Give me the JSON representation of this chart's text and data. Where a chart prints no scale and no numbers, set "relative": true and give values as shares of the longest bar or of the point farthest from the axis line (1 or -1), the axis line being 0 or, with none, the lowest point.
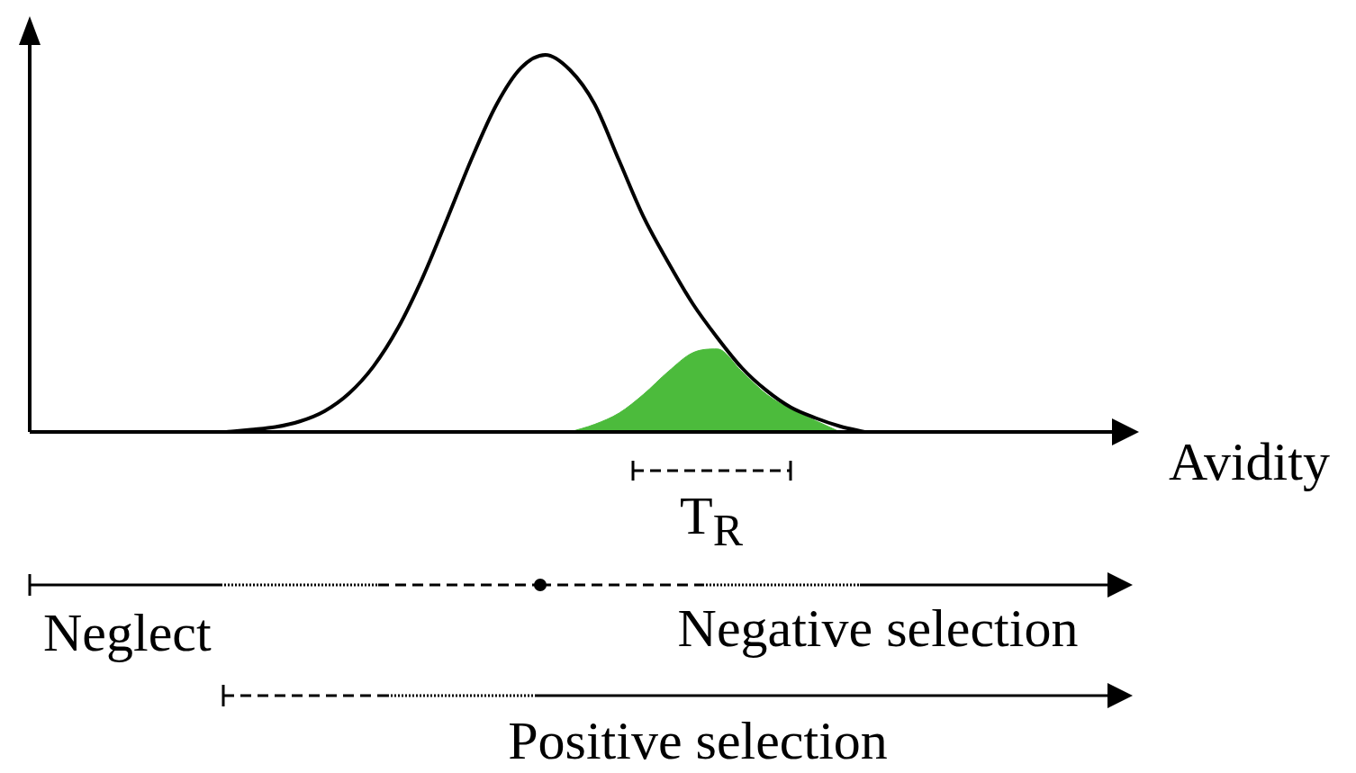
{
  "chart_data": {
    "type": "line",
    "relative": true,
    "xlabel": "Avidity",
    "categories": [
      null,
      null,
      null,
      null,
      null,
      null,
      null,
      null,
      null,
      null,
      null,
      null,
      null,
      null,
      null,
      null,
      null,
      null,
      null,
      null,
      null,
      null,
      null,
      null,
      null,
      null,
      null,
      null,
      null,
      null,
      null,
      null,
      null,
      null,
      null,
      null,
      null,
      null,
      null,
      null,
      null,
      null,
      null,
      null,
      null
    ],
    "series": [
      {
        "type": "area",
        "color": "#4cbb3c",
        "values": [
          null,
          null,
          null,
          null,
          null,
          null,
          null,
          null,
          null,
          null,
          null,
          null,
          null,
          null,
          null,
          null,
          null,
          null,
          null,
          null,
          null,
          null,
          0,
          0.02,
          0.05,
          0.1,
          0.16,
          0.21,
          0.22,
          0.16,
          0.1,
          0.06,
          0.03,
          0,
          null,
          null,
          null,
          null,
          null,
          null,
          null,
          null,
          null,
          null,
          null
        ]
      },
      {
        "type": "line",
        "color": "#000000",
        "values": [
          null,
          null,
          null,
          null,
          null,
          null,
          null,
          null,
          0,
          0.006,
          0.013,
          0.028,
          0.055,
          0.102,
          0.174,
          0.276,
          0.409,
          0.565,
          0.725,
          0.867,
          0.965,
          1,
          0.96,
          0.87,
          0.72,
          0.57,
          0.45,
          0.34,
          0.25,
          0.17,
          0.11,
          0.065,
          0.037,
          0.015,
          0,
          null,
          null,
          null,
          null,
          null,
          null,
          null,
          null,
          null,
          null
        ]
      }
    ],
    "annotations": [
      "T$_{R}$",
      "Neglect",
      "Negative selection",
      "Positive selection"
    ],
    "legend": false,
    "marker": "none",
    "line_style": "solid"
  }
}
